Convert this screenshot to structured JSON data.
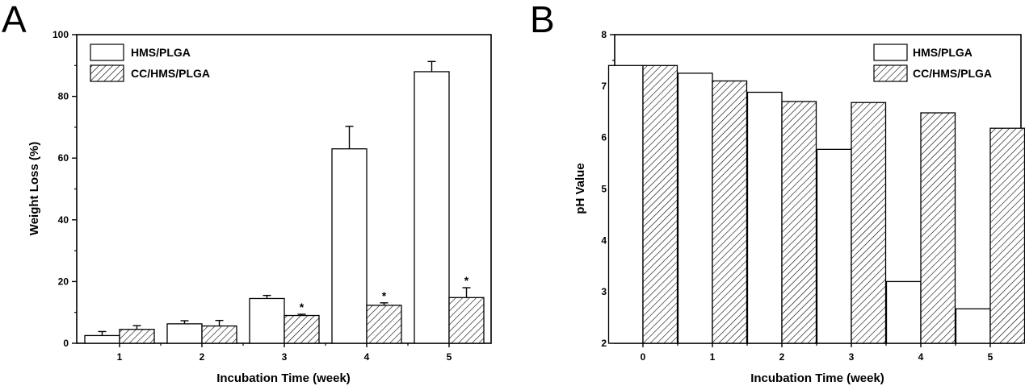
{
  "chart_data": [
    {
      "type": "bar",
      "panel_label": "A",
      "categories": [
        "1",
        "2",
        "3",
        "4",
        "5"
      ],
      "series": [
        {
          "name": "HMS/PLGA",
          "pattern": "hollow",
          "values": [
            2.5,
            6.3,
            14.5,
            63.0,
            88.0
          ],
          "errors": [
            1.3,
            1.0,
            1.0,
            7.3,
            3.3
          ]
        },
        {
          "name": "CC/HMS/PLGA",
          "pattern": "hatched",
          "values": [
            4.5,
            5.6,
            9.0,
            12.3,
            14.8
          ],
          "errors": [
            1.2,
            1.8,
            0.4,
            0.8,
            3.2
          ]
        }
      ],
      "significance": [
        "",
        "",
        "*",
        "*",
        "*"
      ],
      "xlabel": "Incubation Time (week)",
      "ylabel": "Weight Loss (%)",
      "ylim": [
        0,
        100
      ],
      "yticks": [
        "0",
        "20",
        "40",
        "60",
        "80",
        "100"
      ],
      "legend_position": "top-left",
      "grid": false
    },
    {
      "type": "bar",
      "panel_label": "B",
      "categories": [
        "0",
        "1",
        "2",
        "3",
        "4",
        "5"
      ],
      "series": [
        {
          "name": "HMS/PLGA",
          "pattern": "hollow",
          "values": [
            7.4,
            7.25,
            6.88,
            5.77,
            3.2,
            2.67
          ]
        },
        {
          "name": "CC/HMS/PLGA",
          "pattern": "hatched",
          "values": [
            7.4,
            7.1,
            6.7,
            6.68,
            6.48,
            6.18
          ]
        }
      ],
      "xlabel": "Incubation Time (week)",
      "ylabel": "pH Value",
      "ylim": [
        2,
        8
      ],
      "yticks": [
        "2",
        "3",
        "4",
        "5",
        "6",
        "7",
        "8"
      ],
      "legend_position": "top-right",
      "grid": false
    }
  ]
}
